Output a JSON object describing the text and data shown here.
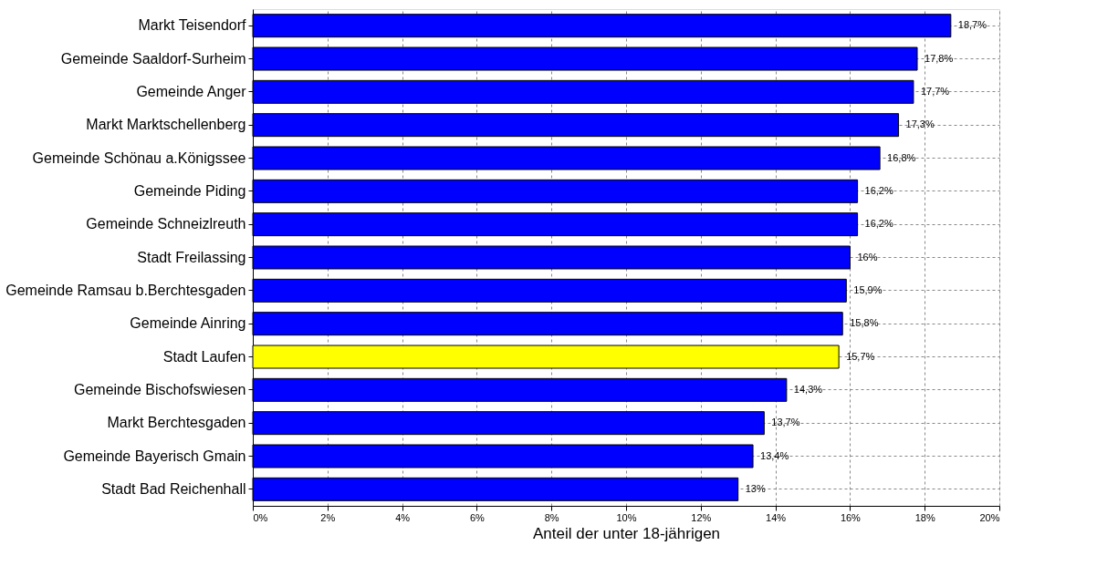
{
  "chart_data": {
    "type": "bar",
    "orientation": "horizontal",
    "xlabel": "Anteil der unter 18-jährigen",
    "categories": [
      "Markt Teisendorf",
      "Gemeinde Saaldorf-Surheim",
      "Gemeinde Anger",
      "Markt Marktschellenberg",
      "Gemeinde Schönau a.Königssee",
      "Gemeinde Piding",
      "Gemeinde Schneizlreuth",
      "Stadt Freilassing",
      "Gemeinde Ramsau b.Berchtesgaden",
      "Gemeinde Ainring",
      "Stadt Laufen",
      "Gemeinde Bischofswiesen",
      "Markt Berchtesgaden",
      "Gemeinde Bayerisch Gmain",
      "Stadt Bad Reichenhall"
    ],
    "values": [
      18.7,
      17.8,
      17.7,
      17.3,
      16.8,
      16.2,
      16.2,
      16,
      15.9,
      15.8,
      15.7,
      14.3,
      13.7,
      13.4,
      13
    ],
    "value_labels": [
      "18,7%",
      "17,8%",
      "17,7%",
      "17,3%",
      "16,8%",
      "16,2%",
      "16,2%",
      "16%",
      "15,9%",
      "15,8%",
      "15,7%",
      "14,3%",
      "13,7%",
      "13,4%",
      "13%"
    ],
    "colors": [
      "#0000ff",
      "#0000ff",
      "#0000ff",
      "#0000ff",
      "#0000ff",
      "#0000ff",
      "#0000ff",
      "#0000ff",
      "#0000ff",
      "#0000ff",
      "#ffff00",
      "#0000ff",
      "#0000ff",
      "#0000ff",
      "#0000ff"
    ],
    "xlim": [
      0,
      20
    ],
    "xticks": [
      {
        "value": 0,
        "label": "0%"
      },
      {
        "value": 2,
        "label": "2%"
      },
      {
        "value": 4,
        "label": "4%"
      },
      {
        "value": 6,
        "label": "6%"
      },
      {
        "value": 8,
        "label": "8%"
      },
      {
        "value": 10,
        "label": "10%"
      },
      {
        "value": 12,
        "label": "12%"
      },
      {
        "value": 14,
        "label": "14%"
      },
      {
        "value": 16,
        "label": "16%"
      },
      {
        "value": 18,
        "label": "18%"
      },
      {
        "value": 20,
        "label": "20%"
      }
    ],
    "grid": true
  }
}
